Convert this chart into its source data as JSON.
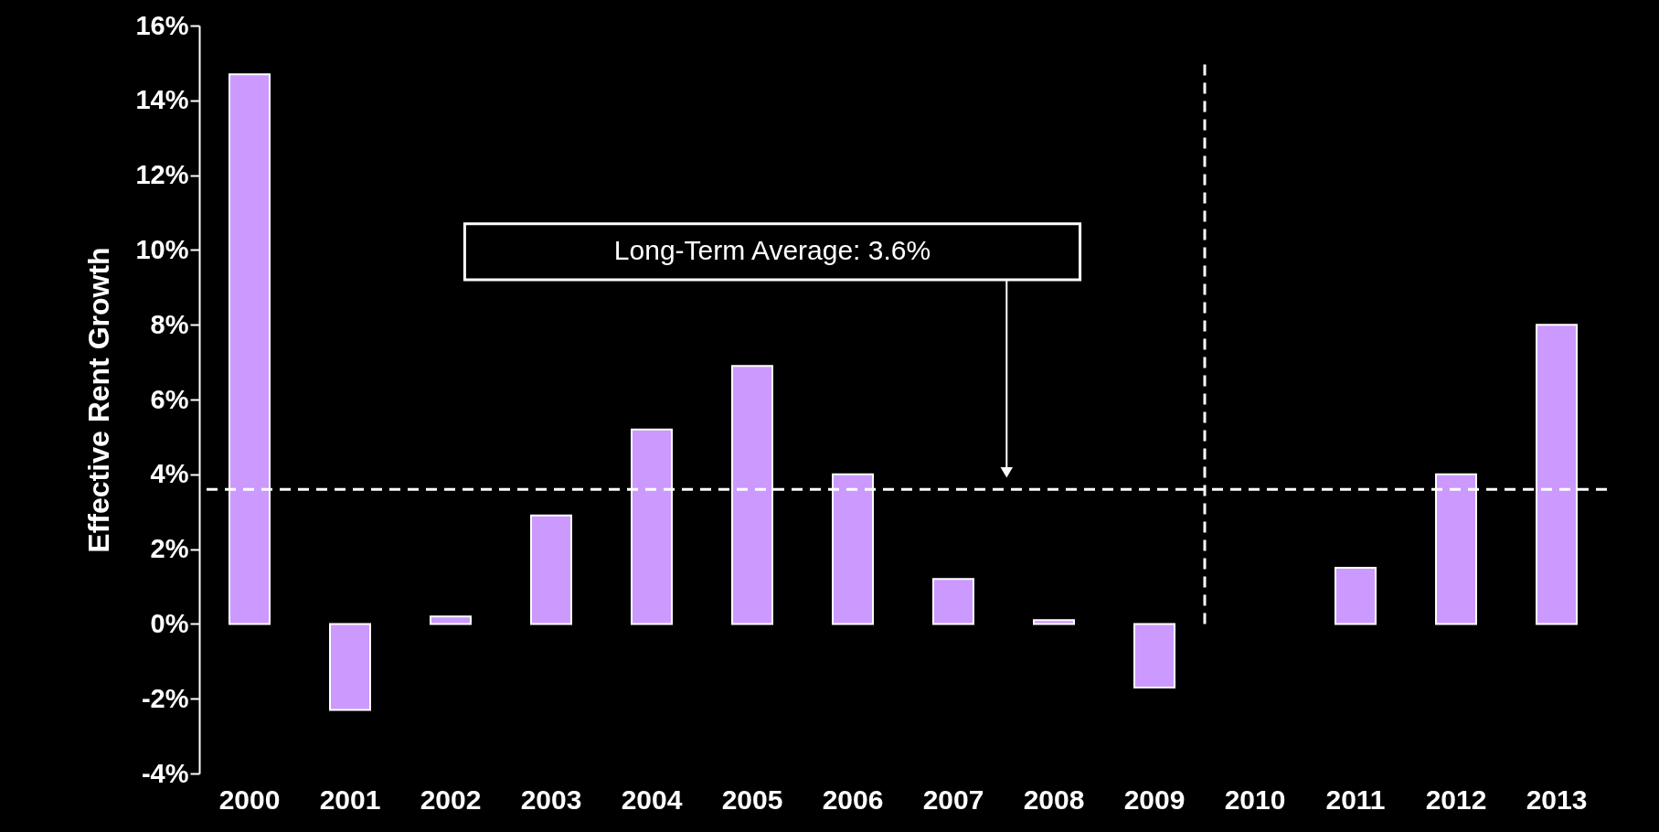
{
  "chart_data": {
    "type": "bar",
    "ylabel": "Effective Rent Growth",
    "categories": [
      "2000",
      "2001",
      "2002",
      "2003",
      "2004",
      "2005",
      "2006",
      "2007",
      "2008",
      "2009",
      "2010",
      "2011",
      "2012",
      "2013"
    ],
    "values": [
      14.7,
      -2.3,
      0.2,
      2.9,
      5.2,
      6.9,
      4.0,
      1.2,
      0.1,
      -1.7,
      null,
      1.5,
      4.0,
      8.0
    ],
    "color": "#cc99ff",
    "ylim": [
      -4,
      16
    ],
    "yticks": [
      {
        "value": -4,
        "label": "-4%"
      },
      {
        "value": -2,
        "label": "-2%"
      },
      {
        "value": 0,
        "label": "0%"
      },
      {
        "value": 2,
        "label": "2%"
      },
      {
        "value": 4,
        "label": "4%"
      },
      {
        "value": 6,
        "label": "6%"
      },
      {
        "value": 8,
        "label": "8%"
      },
      {
        "value": 10,
        "label": "10%"
      },
      {
        "value": 12,
        "label": "12%"
      },
      {
        "value": 14,
        "label": "14%"
      },
      {
        "value": 16,
        "label": "16%"
      }
    ],
    "ref_lines": [
      {
        "axis": "y",
        "value": 3.6,
        "label": "Long-Term Average: 3.6%",
        "color": "#ffffff",
        "line_style": "dashed"
      }
    ]
  }
}
